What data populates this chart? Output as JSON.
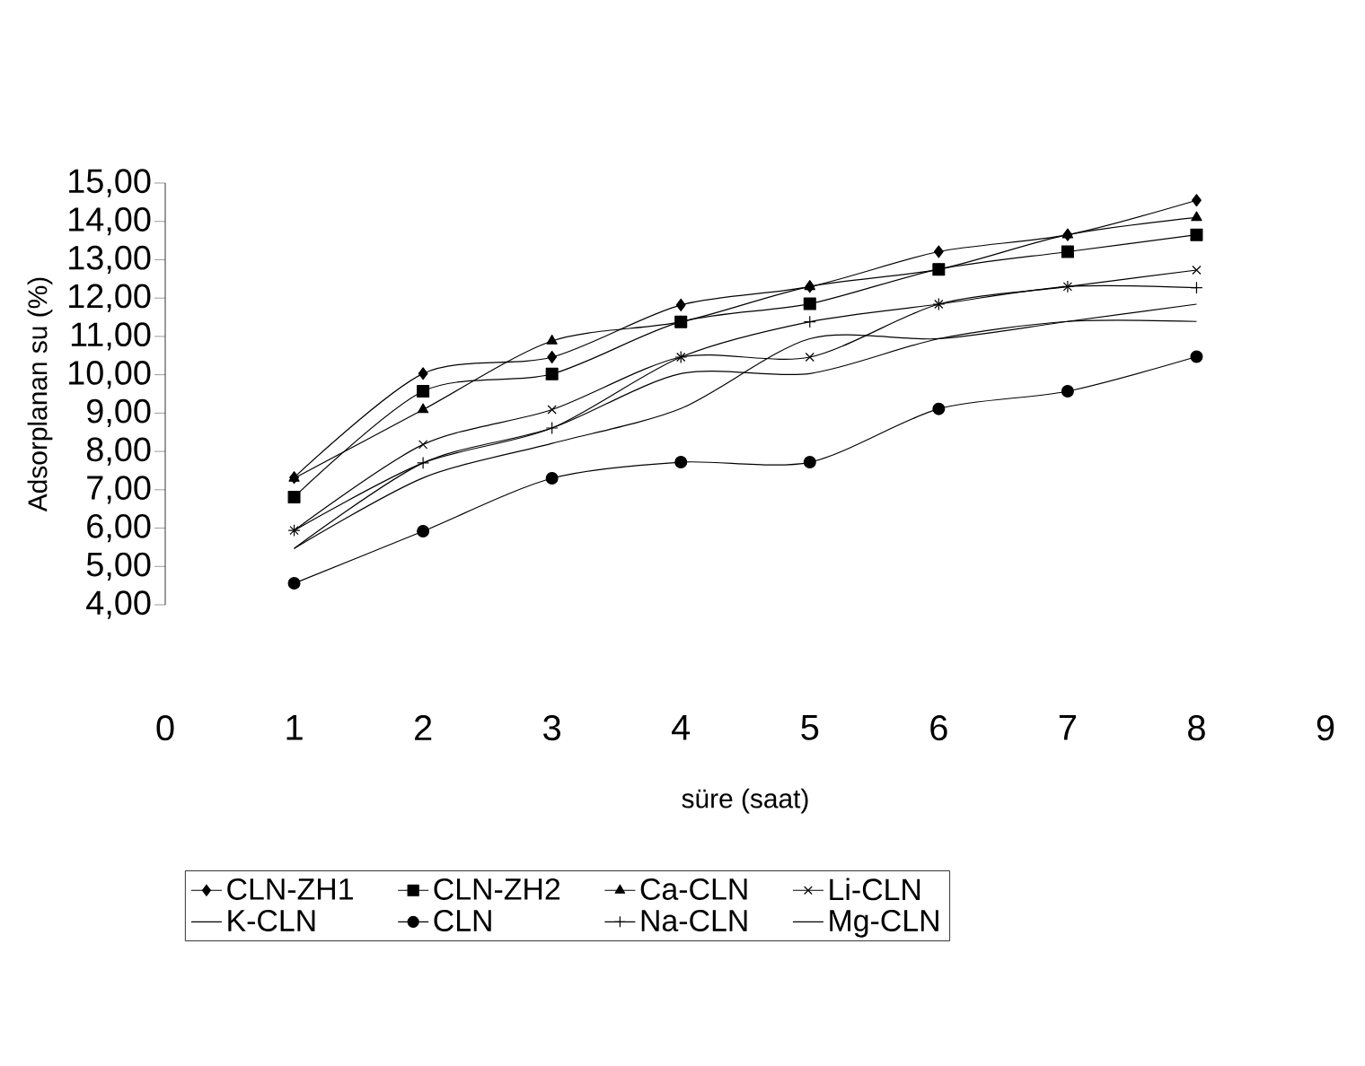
{
  "chart_data": {
    "type": "line",
    "xlabel": "süre (saat)",
    "ylabel": "Adsorplanan su (%)",
    "x": [
      1,
      2,
      3,
      4,
      5,
      6,
      7,
      8
    ],
    "xlim": [
      0,
      9
    ],
    "xticks": [
      0,
      1,
      2,
      3,
      4,
      5,
      6,
      7,
      8,
      9
    ],
    "ylim": [
      4,
      15
    ],
    "yticks": [
      {
        "value": 4,
        "label": "4,00"
      },
      {
        "value": 5,
        "label": "5,00"
      },
      {
        "value": 6,
        "label": "6,00"
      },
      {
        "value": 7,
        "label": "7,00"
      },
      {
        "value": 8,
        "label": "8,00"
      },
      {
        "value": 9,
        "label": "9,00"
      },
      {
        "value": 10,
        "label": "10,00"
      },
      {
        "value": 11,
        "label": "11,00"
      },
      {
        "value": 12,
        "label": "12,00"
      },
      {
        "value": 13,
        "label": "13,00"
      },
      {
        "value": 14,
        "label": "14,00"
      },
      {
        "value": 15,
        "label": "15,00"
      }
    ],
    "grid": false,
    "legend": "bottom",
    "line_style": "solid",
    "series": [
      {
        "name": "CLN-ZH1",
        "color": "#000000",
        "marker": "diamond",
        "values": [
          7.32,
          10.03,
          10.46,
          11.82,
          12.3,
          13.21,
          13.65,
          14.55
        ]
      },
      {
        "name": "CLN-ZH2",
        "color": "#000000",
        "marker": "square",
        "values": [
          6.81,
          9.57,
          10.02,
          11.38,
          11.85,
          12.75,
          13.21,
          13.65
        ]
      },
      {
        "name": "Ca-CLN",
        "color": "#000000",
        "marker": "triangle",
        "values": [
          7.3,
          9.09,
          10.88,
          11.38,
          12.3,
          12.75,
          13.65,
          14.1
        ]
      },
      {
        "name": "Li-CLN",
        "color": "#000000",
        "marker": "cross",
        "values": [
          5.94,
          8.18,
          9.09,
          10.46,
          10.46,
          11.84,
          12.3,
          12.73
        ]
      },
      {
        "name": "K-CLN",
        "color": "#000000",
        "marker": "none",
        "values": [
          5.47,
          7.7,
          8.61,
          10.03,
          10.03,
          10.94,
          11.39,
          11.39
        ]
      },
      {
        "name": "CLN",
        "color": "#000000",
        "marker": "circle",
        "values": [
          4.56,
          5.92,
          7.3,
          7.72,
          7.72,
          9.11,
          9.57,
          10.47
        ]
      },
      {
        "name": "Na-CLN",
        "color": "#000000",
        "marker": "plus",
        "values": [
          5.94,
          7.7,
          8.61,
          10.46,
          11.38,
          11.84,
          12.3,
          12.27
        ]
      },
      {
        "name": "Mg-CLN",
        "color": "#000000",
        "marker": "none",
        "values": [
          5.47,
          7.31,
          8.21,
          9.12,
          10.94,
          10.94,
          11.39,
          11.84
        ]
      }
    ]
  }
}
